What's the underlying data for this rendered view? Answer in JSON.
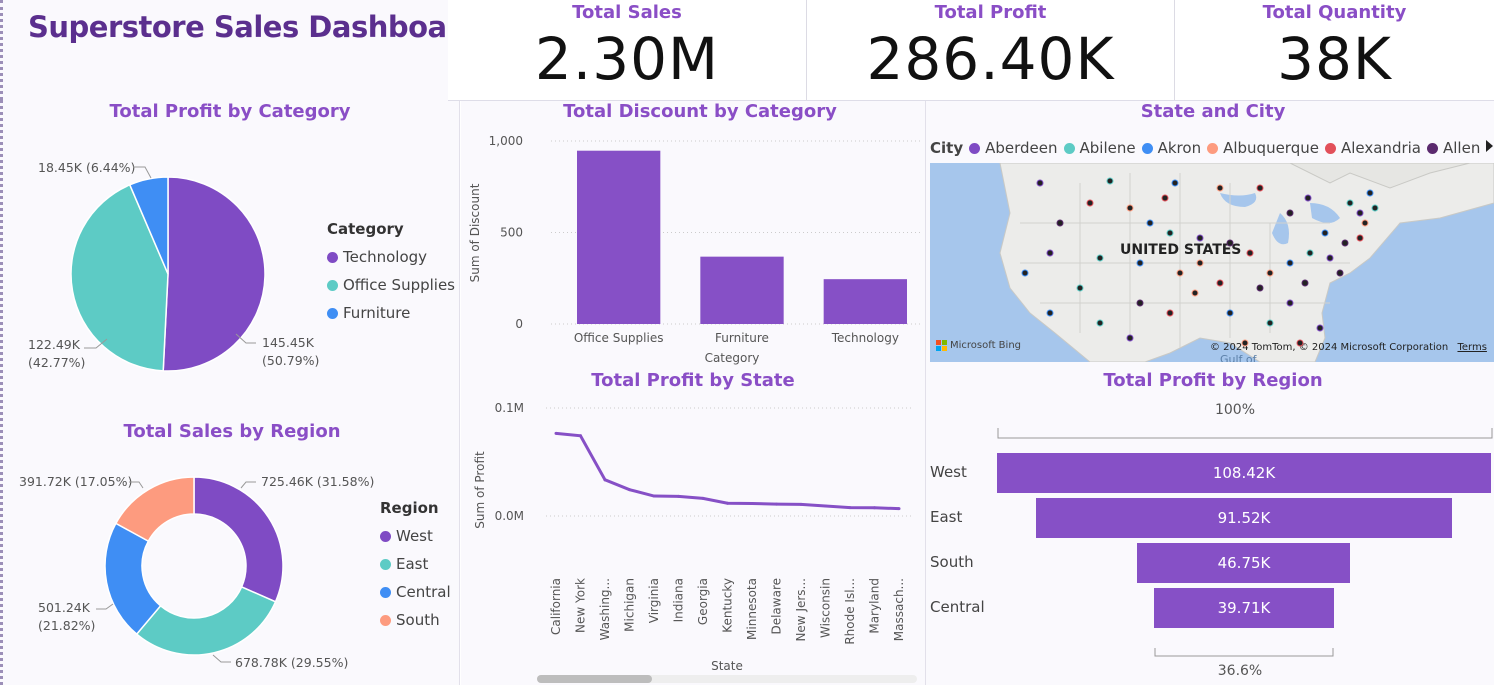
{
  "dashboard": {
    "title": "Superstore Sales Dashboard"
  },
  "kpis": [
    {
      "label": "Total Sales",
      "value": "2.30M"
    },
    {
      "label": "Total Profit",
      "value": "286.40K"
    },
    {
      "label": "Total Quantity",
      "value": "38K"
    }
  ],
  "profit_by_category": {
    "title": "Total Profit by Category",
    "legend_title": "Category",
    "items": [
      {
        "label": "Technology",
        "color": "#7f4bc4",
        "value": 145.45,
        "annotation_l1": "145.45K",
        "annotation_l2": "(50.79%)"
      },
      {
        "label": "Office Supplies",
        "color": "#5dcbc5",
        "value": 122.49,
        "annotation_l1": "122.49K",
        "annotation_l2": "(42.77%)"
      },
      {
        "label": "Furniture",
        "color": "#3f8ef4",
        "value": 18.45,
        "annotation_l1": "18.45K (6.44%)",
        "annotation_l2": ""
      }
    ]
  },
  "sales_by_region": {
    "title": "Total Sales by Region",
    "legend_title": "Region",
    "items": [
      {
        "label": "West",
        "color": "#7f4bc4",
        "value": 725.46,
        "annotation_l1": "725.46K (31.58%)",
        "annotation_l2": ""
      },
      {
        "label": "East",
        "color": "#5dcbc5",
        "value": 678.78,
        "annotation_l1": "678.78K (29.55%)",
        "annotation_l2": ""
      },
      {
        "label": "Central",
        "color": "#3f8ef4",
        "value": 501.24,
        "annotation_l1": "501.24K",
        "annotation_l2": "(21.82%)"
      },
      {
        "label": "South",
        "color": "#fd9b7f",
        "value": 391.72,
        "annotation_l1": "391.72K (17.05%)",
        "annotation_l2": ""
      }
    ]
  },
  "discount_by_category": {
    "title": "Total Discount by Category",
    "ylabel": "Sum of Discount",
    "xlabel": "Category",
    "ticks": [
      "0",
      "500",
      "1,000"
    ],
    "tick_values": [
      0,
      500,
      1000
    ]
  },
  "state_city": {
    "title": "State and City",
    "legend_label": "City",
    "cities": [
      {
        "name": "Aberdeen",
        "color": "#7f4bc4"
      },
      {
        "name": "Abilene",
        "color": "#5dcbc5"
      },
      {
        "name": "Akron",
        "color": "#3f8ef4"
      },
      {
        "name": "Albuquerque",
        "color": "#fd9b7f"
      },
      {
        "name": "Alexandria",
        "color": "#e2505a"
      },
      {
        "name": "Allen",
        "color": "#5b2a6e"
      }
    ],
    "map_label": "UNITED STATES",
    "map_sublabel": "Gulf of",
    "bing_label": "Microsoft Bing",
    "copyright": "© 2024 TomTom, © 2024 Microsoft Corporation",
    "terms": "Terms",
    "more_icon": "caret-right-icon"
  },
  "profit_by_state": {
    "title": "Total Profit by State",
    "ylabel": "Sum of Profit",
    "xlabel": "State",
    "ticks": [
      "0.0M",
      "0.1M"
    ],
    "tick_values": [
      0,
      0.1
    ]
  },
  "profit_by_region": {
    "title": "Total Profit by Region",
    "top_pct": "100%",
    "bottom_pct": "36.6%",
    "bars": [
      {
        "label": "West",
        "value": 108.42,
        "text": "108.42K"
      },
      {
        "label": "East",
        "value": 91.52,
        "text": "91.52K"
      },
      {
        "label": "South",
        "value": 46.75,
        "text": "46.75K"
      },
      {
        "label": "Central",
        "value": 39.71,
        "text": "39.71K"
      }
    ]
  },
  "chart_data": [
    {
      "type": "pie",
      "title": "Total Profit by Category",
      "categories": [
        "Technology",
        "Office Supplies",
        "Furniture"
      ],
      "values": [
        145.45,
        122.49,
        18.45
      ]
    },
    {
      "type": "pie",
      "title": "Total Sales by Region",
      "categories": [
        "West",
        "East",
        "Central",
        "South"
      ],
      "values": [
        725.46,
        678.78,
        501.24,
        391.72
      ]
    },
    {
      "type": "bar",
      "title": "Total Discount by Category",
      "categories": [
        "Office Supplies",
        "Furniture",
        "Technology"
      ],
      "values": [
        947,
        368,
        245
      ],
      "xlabel": "Category",
      "ylabel": "Sum of Discount",
      "ylim": [
        0,
        1000
      ]
    },
    {
      "type": "line",
      "title": "Total Profit by State",
      "categories": [
        "California",
        "New York",
        "Washing...",
        "Michigan",
        "Virginia",
        "Indiana",
        "Georgia",
        "Kentucky",
        "Minnesota",
        "Delaware",
        "New Jers...",
        "Wisconsin",
        "Rhode Isl...",
        "Maryland",
        "Massach..."
      ],
      "values": [
        0.0765,
        0.0743,
        0.0335,
        0.0244,
        0.0185,
        0.0182,
        0.0163,
        0.0118,
        0.0116,
        0.011,
        0.0108,
        0.0093,
        0.0078,
        0.0076,
        0.0068
      ],
      "xlabel": "State",
      "ylabel": "Sum of Profit"
    },
    {
      "type": "bar",
      "title": "Total Profit by Region",
      "categories": [
        "West",
        "East",
        "South",
        "Central"
      ],
      "values": [
        108.42,
        91.52,
        46.75,
        39.71
      ]
    }
  ]
}
